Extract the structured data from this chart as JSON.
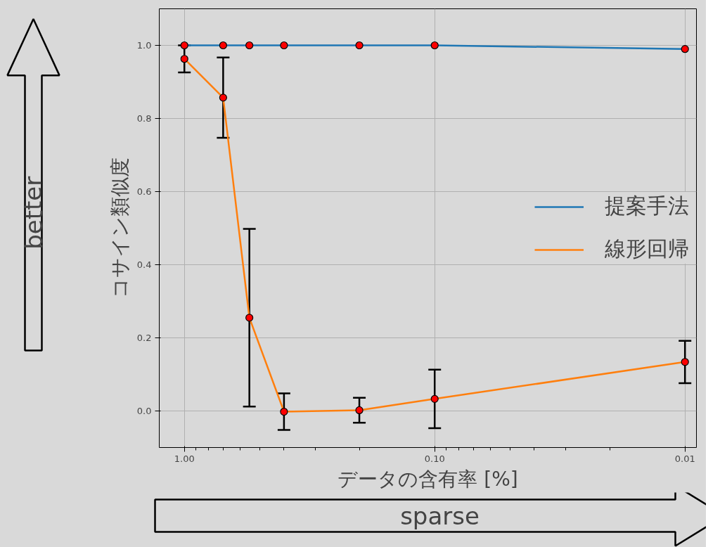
{
  "chart_data": {
    "type": "line",
    "xlabel": "データの含有率 [%]",
    "ylabel": "コサイン類似度",
    "x": [
      1.0,
      0.7,
      0.55,
      0.4,
      0.2,
      0.1,
      0.01
    ],
    "series": [
      {
        "name": "提案手法",
        "color": "#1f77b4",
        "values": [
          1.0,
          1.0,
          1.0,
          1.0,
          1.0,
          1.0,
          0.99
        ]
      },
      {
        "name": "線形回帰",
        "color": "#ff7f0e",
        "values": [
          0.963,
          0.857,
          0.255,
          -0.002,
          0.002,
          0.033,
          0.134
        ],
        "errors": [
          0.037,
          0.11,
          0.243,
          0.05,
          0.034,
          0.08,
          0.058
        ]
      }
    ],
    "log": "x",
    "xlim": [
      1.26,
      0.009
    ],
    "ylim": [
      -0.1,
      1.1
    ],
    "xticks": [
      {
        "value": 1,
        "label": "1.00"
      },
      {
        "value": 0.1,
        "label": "0.10"
      },
      {
        "value": 0.01,
        "label": "0.01"
      }
    ],
    "yticks": [
      {
        "value": 0,
        "label": "0.0"
      },
      {
        "value": 0.2,
        "label": "0.2"
      },
      {
        "value": 0.4,
        "label": "0.4"
      },
      {
        "value": 0.6,
        "label": "0.6"
      },
      {
        "value": 0.8,
        "label": "0.8"
      },
      {
        "value": 1,
        "label": "1.0"
      }
    ],
    "grid": true,
    "legend": "right",
    "marker": "circle",
    "line_style": "solid",
    "annotations": [
      "better",
      "sparse"
    ]
  }
}
